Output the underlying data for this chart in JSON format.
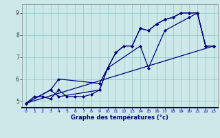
{
  "xlabel": "Graphe des températures (°c)",
  "bg_color": "#cce8e8",
  "grid_color": "#99cccc",
  "line_color": "#000080",
  "xlim": [
    -0.5,
    23.5
  ],
  "ylim": [
    4.7,
    9.4
  ],
  "yticks": [
    5,
    6,
    7,
    8,
    9
  ],
  "xticks": [
    0,
    1,
    2,
    3,
    4,
    5,
    6,
    7,
    8,
    9,
    10,
    11,
    12,
    13,
    14,
    15,
    16,
    17,
    18,
    19,
    20,
    21,
    22,
    23
  ],
  "line1_x": [
    0,
    1,
    2,
    3,
    4,
    5,
    6,
    7,
    8,
    9,
    10,
    11,
    12,
    13,
    14,
    15,
    16,
    17,
    18,
    19,
    20,
    21,
    22,
    23
  ],
  "line1_y": [
    4.9,
    5.2,
    5.2,
    5.1,
    5.5,
    5.2,
    5.2,
    5.2,
    5.3,
    5.5,
    6.5,
    7.2,
    7.5,
    7.5,
    8.3,
    8.2,
    8.5,
    8.7,
    8.8,
    9.0,
    9.0,
    9.0,
    7.5,
    7.5
  ],
  "line2_x": [
    0,
    3,
    4,
    9,
    10,
    11,
    12,
    13,
    14,
    15,
    16,
    17,
    18,
    19,
    20,
    21,
    22,
    23
  ],
  "line2_y": [
    4.9,
    5.5,
    5.2,
    5.5,
    6.5,
    7.2,
    7.5,
    7.5,
    8.3,
    8.2,
    8.5,
    8.7,
    8.8,
    9.0,
    9.0,
    9.0,
    7.5,
    7.5
  ],
  "line3_x": [
    0,
    3,
    4,
    9,
    10,
    14,
    15,
    17,
    20,
    21,
    22,
    23
  ],
  "line3_y": [
    4.9,
    5.5,
    6.0,
    5.8,
    6.5,
    7.5,
    6.5,
    8.2,
    8.8,
    9.0,
    7.5,
    7.5
  ],
  "line4_x": [
    0,
    23
  ],
  "line4_y": [
    4.9,
    7.5
  ]
}
